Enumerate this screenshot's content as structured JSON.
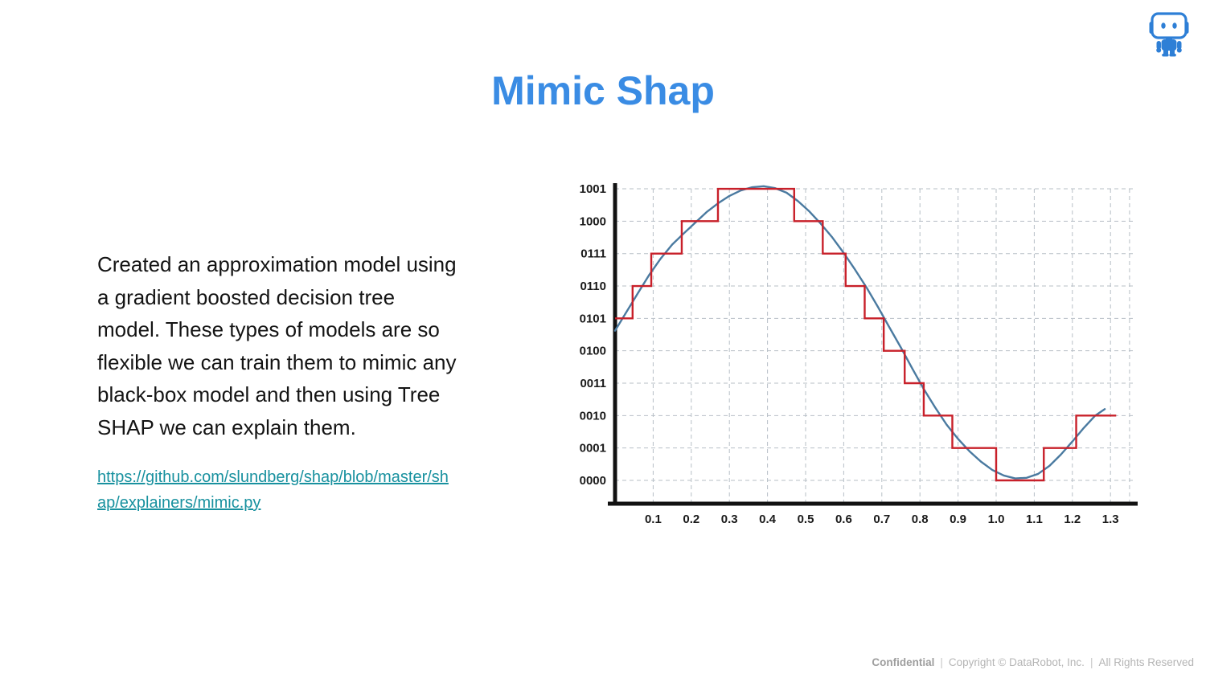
{
  "slide": {
    "title": "Mimic Shap",
    "body_text": "Created an approximation model using\na gradient boosted decision tree\nmodel. These types of models are so\nflexible we can train them to mimic any\nblack-box model and then using Tree\nSHAP we can explain them.",
    "link_text": "https://github.com/slundberg/shap/blob/master/sh\nap/explainers/mimic.py",
    "footer": {
      "confidential": "Confidential",
      "separator": "|",
      "copyright": "Copyright © DataRobot, Inc.",
      "rights": "All Rights Reserved"
    },
    "logo": "datarobot-robot-mascot"
  },
  "colors": {
    "title_blue": "#3a8ce4",
    "link_teal": "#18919f",
    "brand_blue": "#2e7fd6",
    "signal_blue": "#4a7aa0",
    "step_red": "#c8202a",
    "grid_gray": "#b7bfc6",
    "footer_gray": "#b5b5b5"
  },
  "chart_data": {
    "type": "line",
    "title": "",
    "xlabel": "",
    "ylabel": "",
    "grid": "dashed",
    "legend_position": "none",
    "xlim": [
      0,
      1.37
    ],
    "ylim_levels": [
      0,
      9
    ],
    "x_ticks": [
      0.1,
      0.2,
      0.3,
      0.4,
      0.5,
      0.6,
      0.7,
      0.8,
      0.9,
      1.0,
      1.1,
      1.2,
      1.3
    ],
    "x_gridlines": [
      0.1,
      0.2,
      0.3,
      0.4,
      0.5,
      0.6,
      0.7,
      0.8,
      0.9,
      1.0,
      1.1,
      1.2,
      1.3,
      1.35
    ],
    "y_tick_labels": [
      "0000",
      "0001",
      "0010",
      "0011",
      "0100",
      "0101",
      "0110",
      "0111",
      "1000",
      "1001"
    ],
    "series": [
      {
        "name": "continuous signal (sine wave)",
        "type": "line",
        "color": "#4a7aa0",
        "x": [
          0,
          0.03,
          0.06,
          0.09,
          0.12,
          0.15,
          0.18,
          0.21,
          0.24,
          0.27,
          0.3,
          0.33,
          0.36,
          0.39,
          0.42,
          0.45,
          0.48,
          0.51,
          0.54,
          0.57,
          0.6,
          0.63,
          0.66,
          0.69,
          0.72,
          0.75,
          0.78,
          0.81,
          0.84,
          0.87,
          0.9,
          0.93,
          0.96,
          0.99,
          1.02,
          1.05,
          1.08,
          1.11,
          1.14,
          1.17,
          1.2,
          1.23,
          1.26,
          1.285
        ],
        "y": [
          4.62,
          5.2,
          5.78,
          6.35,
          6.85,
          7.28,
          7.62,
          7.95,
          8.28,
          8.55,
          8.78,
          8.95,
          9.05,
          9.08,
          9.02,
          8.88,
          8.62,
          8.3,
          7.92,
          7.5,
          7.02,
          6.5,
          5.95,
          5.35,
          4.72,
          4.1,
          3.45,
          2.82,
          2.25,
          1.72,
          1.28,
          0.9,
          0.58,
          0.32,
          0.15,
          0.06,
          0.08,
          0.2,
          0.45,
          0.8,
          1.2,
          1.62,
          2.0,
          2.2
        ]
      },
      {
        "name": "quantized approximation (steps)",
        "type": "step",
        "color": "#c8202a",
        "steps": [
          {
            "x_start": 0.0,
            "x_end": 0.046,
            "level": 5,
            "label": "0101"
          },
          {
            "x_start": 0.046,
            "x_end": 0.095,
            "level": 6,
            "label": "0110"
          },
          {
            "x_start": 0.095,
            "x_end": 0.175,
            "level": 7,
            "label": "0111"
          },
          {
            "x_start": 0.175,
            "x_end": 0.27,
            "level": 8,
            "label": "1000"
          },
          {
            "x_start": 0.27,
            "x_end": 0.47,
            "level": 9,
            "label": "1001"
          },
          {
            "x_start": 0.47,
            "x_end": 0.545,
            "level": 8,
            "label": "1000"
          },
          {
            "x_start": 0.545,
            "x_end": 0.605,
            "level": 7,
            "label": "0111"
          },
          {
            "x_start": 0.605,
            "x_end": 0.655,
            "level": 6,
            "label": "0110"
          },
          {
            "x_start": 0.655,
            "x_end": 0.705,
            "level": 5,
            "label": "0101"
          },
          {
            "x_start": 0.705,
            "x_end": 0.76,
            "level": 4,
            "label": "0100"
          },
          {
            "x_start": 0.76,
            "x_end": 0.81,
            "level": 3,
            "label": "0011"
          },
          {
            "x_start": 0.81,
            "x_end": 0.885,
            "level": 2,
            "label": "0010"
          },
          {
            "x_start": 0.885,
            "x_end": 1.0,
            "level": 1,
            "label": "0001"
          },
          {
            "x_start": 1.0,
            "x_end": 1.125,
            "level": 0,
            "label": "0000"
          },
          {
            "x_start": 1.125,
            "x_end": 1.21,
            "level": 1,
            "label": "0001"
          },
          {
            "x_start": 1.21,
            "x_end": 1.315,
            "level": 2,
            "label": "0010"
          }
        ]
      }
    ]
  }
}
